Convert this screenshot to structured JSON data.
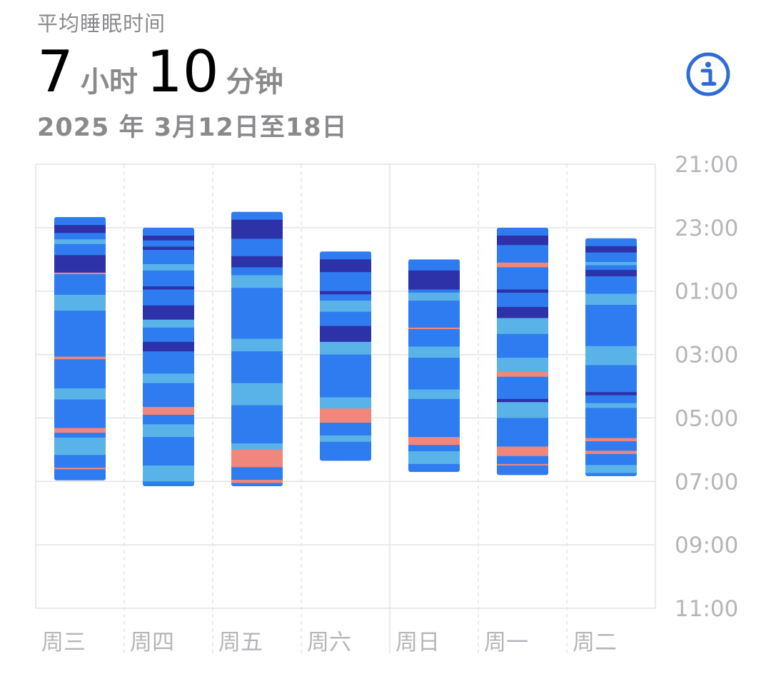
{
  "header": {
    "label": "平均睡眠时间",
    "hours_value": "7",
    "hours_unit": "小时",
    "minutes_value": "10",
    "minutes_unit": "分钟",
    "date_range": "2025 年 3月12日至18日",
    "info_icon": "info-circle-icon"
  },
  "colors": {
    "awake": "#F0877A",
    "rem": "#5AB3E8",
    "core": "#2F7BF0",
    "deep": "#2E32A8",
    "grid": "#e3e3e6",
    "axis_text": "#b5b5ba",
    "accent": "#2F6BD6"
  },
  "chart_data": {
    "type": "sleep-stage-timeline",
    "y_ticks": [
      "21:00",
      "23:00",
      "01:00",
      "03:00",
      "05:00",
      "07:00",
      "09:00",
      "11:00"
    ],
    "y_range_hours_after_21": [
      0,
      14
    ],
    "days": [
      {
        "label": "周三",
        "start": "22:40",
        "end": "07:00",
        "segments": [
          [
            "core",
            0.0,
            0.25
          ],
          [
            "deep",
            0.25,
            0.5
          ],
          [
            "core",
            0.5,
            0.7
          ],
          [
            "rem",
            0.7,
            0.85
          ],
          [
            "core",
            0.85,
            1.2
          ],
          [
            "deep",
            1.2,
            1.75
          ],
          [
            "awake",
            1.75,
            1.8
          ],
          [
            "core",
            1.8,
            2.45
          ],
          [
            "rem",
            2.45,
            2.95
          ],
          [
            "core",
            2.95,
            4.4
          ],
          [
            "awake",
            4.4,
            4.48
          ],
          [
            "core",
            4.48,
            5.4
          ],
          [
            "rem",
            5.4,
            5.75
          ],
          [
            "core",
            5.75,
            6.65
          ],
          [
            "awake",
            6.65,
            6.8
          ],
          [
            "core",
            6.8,
            6.95
          ],
          [
            "rem",
            6.95,
            7.5
          ],
          [
            "core",
            7.5,
            7.9
          ],
          [
            "awake",
            7.9,
            7.95
          ],
          [
            "core",
            7.95,
            8.3
          ]
        ]
      },
      {
        "label": "周四",
        "start": "23:00",
        "end": "07:10",
        "segments": [
          [
            "core",
            0.0,
            0.25
          ],
          [
            "deep",
            0.25,
            0.4
          ],
          [
            "core",
            0.4,
            0.6
          ],
          [
            "deep",
            0.6,
            0.7
          ],
          [
            "core",
            0.7,
            1.15
          ],
          [
            "rem",
            1.15,
            1.35
          ],
          [
            "core",
            1.35,
            1.85
          ],
          [
            "deep",
            1.85,
            1.95
          ],
          [
            "core",
            1.95,
            2.45
          ],
          [
            "deep",
            2.45,
            2.9
          ],
          [
            "rem",
            2.9,
            3.15
          ],
          [
            "core",
            3.15,
            3.6
          ],
          [
            "deep",
            3.6,
            3.9
          ],
          [
            "core",
            3.9,
            4.6
          ],
          [
            "rem",
            4.6,
            4.9
          ],
          [
            "core",
            4.9,
            5.65
          ],
          [
            "awake",
            5.65,
            5.9
          ],
          [
            "core",
            5.9,
            6.2
          ],
          [
            "rem",
            6.2,
            6.6
          ],
          [
            "core",
            6.6,
            7.5
          ],
          [
            "rem",
            7.5,
            8.0
          ],
          [
            "core",
            8.0,
            8.15
          ]
        ]
      },
      {
        "label": "周五",
        "start": "22:30",
        "end": "07:10",
        "segments": [
          [
            "core",
            0.0,
            0.25
          ],
          [
            "deep",
            0.25,
            0.85
          ],
          [
            "core",
            0.85,
            1.4
          ],
          [
            "deep",
            1.4,
            1.75
          ],
          [
            "core",
            1.75,
            2.0
          ],
          [
            "rem",
            2.0,
            2.4
          ],
          [
            "core",
            2.4,
            4.0
          ],
          [
            "rem",
            4.0,
            4.4
          ],
          [
            "core",
            4.4,
            5.4
          ],
          [
            "rem",
            5.4,
            6.1
          ],
          [
            "core",
            6.1,
            7.3
          ],
          [
            "rem",
            7.3,
            7.5
          ],
          [
            "awake",
            7.5,
            8.05
          ],
          [
            "core",
            8.05,
            8.45
          ],
          [
            "awake",
            8.45,
            8.55
          ],
          [
            "core",
            8.55,
            8.65
          ]
        ]
      },
      {
        "label": "周六",
        "start": "23:45",
        "end": "06:20",
        "segments": [
          [
            "core",
            0.0,
            0.25
          ],
          [
            "deep",
            0.25,
            0.65
          ],
          [
            "core",
            0.65,
            1.25
          ],
          [
            "deep",
            1.25,
            1.35
          ],
          [
            "core",
            1.35,
            1.55
          ],
          [
            "rem",
            1.55,
            1.9
          ],
          [
            "core",
            1.9,
            2.35
          ],
          [
            "deep",
            2.35,
            2.85
          ],
          [
            "rem",
            2.85,
            3.25
          ],
          [
            "core",
            3.25,
            4.6
          ],
          [
            "rem",
            4.6,
            4.95
          ],
          [
            "awake",
            4.95,
            5.4
          ],
          [
            "core",
            5.4,
            5.8
          ],
          [
            "rem",
            5.8,
            6.0
          ],
          [
            "core",
            6.0,
            6.6
          ]
        ]
      },
      {
        "label": "周日",
        "start": "00:00",
        "end": "06:40",
        "segments": [
          [
            "core",
            0.0,
            0.35
          ],
          [
            "deep",
            0.35,
            0.95
          ],
          [
            "core",
            0.95,
            1.05
          ],
          [
            "rem",
            1.05,
            1.3
          ],
          [
            "core",
            1.3,
            2.15
          ],
          [
            "awake",
            2.15,
            2.2
          ],
          [
            "core",
            2.2,
            2.75
          ],
          [
            "rem",
            2.75,
            3.1
          ],
          [
            "core",
            3.1,
            4.1
          ],
          [
            "rem",
            4.1,
            4.4
          ],
          [
            "core",
            4.4,
            5.6
          ],
          [
            "awake",
            5.6,
            5.85
          ],
          [
            "core",
            5.85,
            6.05
          ],
          [
            "rem",
            6.05,
            6.45
          ],
          [
            "core",
            6.45,
            6.7
          ]
        ]
      },
      {
        "label": "周一",
        "start": "23:00",
        "end": "06:50",
        "segments": [
          [
            "core",
            0.0,
            0.25
          ],
          [
            "deep",
            0.25,
            0.55
          ],
          [
            "core",
            0.55,
            1.1
          ],
          [
            "awake",
            1.1,
            1.25
          ],
          [
            "core",
            1.25,
            1.95
          ],
          [
            "deep",
            1.95,
            2.05
          ],
          [
            "core",
            2.05,
            2.5
          ],
          [
            "deep",
            2.5,
            2.85
          ],
          [
            "rem",
            2.85,
            3.35
          ],
          [
            "core",
            3.35,
            4.1
          ],
          [
            "rem",
            4.1,
            4.55
          ],
          [
            "awake",
            4.55,
            4.7
          ],
          [
            "core",
            4.7,
            5.4
          ],
          [
            "deep",
            5.4,
            5.5
          ],
          [
            "rem",
            5.5,
            6.0
          ],
          [
            "core",
            6.0,
            6.9
          ],
          [
            "awake",
            6.9,
            7.2
          ],
          [
            "core",
            7.2,
            7.45
          ],
          [
            "awake",
            7.45,
            7.5
          ],
          [
            "core",
            7.5,
            7.8
          ]
        ]
      },
      {
        "label": "周二",
        "start": "23:20",
        "end": "06:50",
        "segments": [
          [
            "core",
            0.0,
            0.25
          ],
          [
            "deep",
            0.25,
            0.45
          ],
          [
            "core",
            0.45,
            0.75
          ],
          [
            "rem",
            0.75,
            0.85
          ],
          [
            "core",
            0.85,
            1.0
          ],
          [
            "deep",
            1.0,
            1.2
          ],
          [
            "core",
            1.2,
            1.75
          ],
          [
            "rem",
            1.75,
            2.1
          ],
          [
            "core",
            2.1,
            3.4
          ],
          [
            "rem",
            3.4,
            4.0
          ],
          [
            "core",
            4.0,
            4.85
          ],
          [
            "deep",
            4.85,
            4.95
          ],
          [
            "core",
            4.95,
            5.2
          ],
          [
            "rem",
            5.2,
            5.35
          ],
          [
            "core",
            5.35,
            6.3
          ],
          [
            "awake",
            6.3,
            6.4
          ],
          [
            "core",
            6.4,
            6.7
          ],
          [
            "awake",
            6.7,
            6.8
          ],
          [
            "core",
            6.8,
            7.15
          ],
          [
            "rem",
            7.15,
            7.4
          ],
          [
            "core",
            7.4,
            7.5
          ]
        ]
      }
    ]
  }
}
